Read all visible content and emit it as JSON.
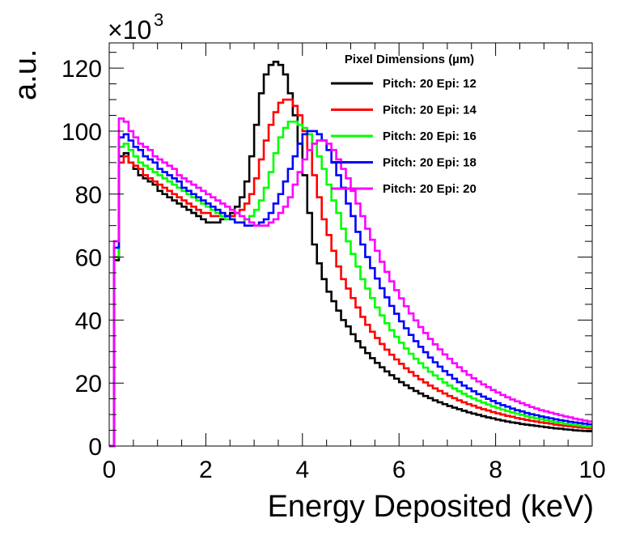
{
  "chart_data": {
    "type": "line",
    "style": "step-histogram",
    "xlabel": "Energy Deposited (keV)",
    "ylabel": "a.u.",
    "y_multiplier_label": "×10",
    "y_multiplier_exponent": "3",
    "xlim": [
      0,
      10
    ],
    "ylim": [
      0,
      128
    ],
    "x_ticks": [
      0,
      2,
      4,
      6,
      8,
      10
    ],
    "y_ticks": [
      0,
      20,
      40,
      60,
      80,
      100,
      120
    ],
    "x_minor_step": 0.5,
    "y_minor_step": 5,
    "bin_width": 0.1,
    "legend_title": "Pixel Dimensions (µm)",
    "legend_position": "top-right",
    "grid": false,
    "series": [
      {
        "name": "Pitch: 20 Epi: 12",
        "color": "#000000",
        "values": [
          0,
          59,
          92,
          93,
          90,
          88,
          86,
          85,
          84,
          83,
          81,
          80,
          79,
          78,
          77,
          76,
          75,
          74,
          73,
          72,
          71,
          71,
          71,
          72,
          73,
          74,
          76,
          79,
          84,
          92,
          102,
          112,
          118,
          121,
          122,
          121,
          118,
          112,
          105,
          96,
          86,
          74,
          64,
          58,
          53,
          49,
          46,
          43,
          40,
          38,
          35.5,
          33.3,
          31.3,
          29.5,
          27.9,
          26.4,
          25.0,
          23.7,
          22.5,
          21.4,
          20.3,
          19.3,
          18.4,
          17.5,
          16.7,
          15.9,
          15.2,
          14.5,
          13.9,
          13.3,
          12.7,
          12.2,
          11.7,
          11.2,
          10.7,
          10.3,
          9.9,
          9.5,
          9.1,
          8.8,
          8.4,
          8.1,
          7.8,
          7.5,
          7.3,
          7.0,
          6.8,
          6.6,
          6.4,
          6.2,
          6.0,
          5.8,
          5.6,
          5.5,
          5.3,
          5.2,
          5.0,
          4.9,
          4.8,
          4.7
        ]
      },
      {
        "name": "Pitch: 20 Epi: 14",
        "color": "#ff0000",
        "values": [
          0,
          60,
          90,
          92,
          90,
          89,
          88,
          86,
          85,
          84,
          83,
          82,
          81,
          80,
          79,
          78,
          77,
          76,
          75,
          74,
          74,
          73,
          73,
          73,
          73,
          73,
          74,
          75,
          77,
          80,
          85,
          91,
          97,
          102,
          106,
          109,
          110,
          110,
          108,
          105,
          100,
          94,
          86,
          79,
          72,
          67,
          62,
          57,
          53,
          50,
          47,
          44,
          41,
          38.5,
          36.3,
          34.3,
          32.4,
          30.6,
          29.0,
          27.5,
          26.1,
          24.7,
          23.5,
          22.3,
          21.2,
          20.2,
          19.2,
          18.3,
          17.5,
          16.7,
          15.9,
          15.2,
          14.5,
          13.9,
          13.3,
          12.8,
          12.2,
          11.7,
          11.3,
          10.8,
          10.4,
          10.0,
          9.6,
          9.3,
          8.9,
          8.6,
          8.3,
          8.0,
          7.8,
          7.5,
          7.3,
          7.1,
          6.8,
          6.6,
          6.4,
          6.3,
          6.1,
          5.9,
          5.8,
          5.6
        ]
      },
      {
        "name": "Pitch: 20 Epi: 16",
        "color": "#00ff00",
        "values": [
          0,
          60,
          95,
          96,
          94,
          92,
          90,
          89,
          88,
          87,
          86,
          85,
          84,
          83,
          82,
          81,
          80,
          79,
          78,
          77,
          76,
          75,
          74,
          73,
          72,
          72,
          71,
          71,
          72,
          73,
          75,
          78,
          82,
          87,
          93,
          98,
          101,
          103,
          103,
          102,
          101,
          99,
          96,
          92,
          88,
          83,
          78,
          74,
          69,
          65,
          61,
          57,
          53,
          50,
          47,
          44,
          41.5,
          39,
          36.8,
          34.7,
          32.8,
          31.0,
          29.3,
          27.7,
          26.3,
          24.9,
          23.6,
          22.4,
          21.3,
          20.2,
          19.2,
          18.3,
          17.4,
          16.6,
          15.8,
          15.1,
          14.4,
          13.8,
          13.2,
          12.6,
          12.1,
          11.6,
          11.1,
          10.7,
          10.3,
          9.9,
          9.5,
          9.1,
          8.8,
          8.5,
          8.2,
          7.9,
          7.6,
          7.4,
          7.1,
          6.9,
          6.7,
          6.5,
          6.3,
          6.1
        ]
      },
      {
        "name": "Pitch: 20 Epi: 18",
        "color": "#0000ff",
        "values": [
          0,
          63,
          98,
          99,
          97,
          95,
          94,
          92,
          91,
          90,
          88,
          87,
          86,
          85,
          84,
          82,
          81,
          80,
          79,
          78,
          77,
          76,
          75,
          74,
          73,
          72,
          71,
          71,
          70,
          70,
          70,
          71,
          72,
          74,
          77,
          80,
          84,
          88,
          92,
          96,
          99,
          100,
          100,
          99,
          97,
          94,
          90,
          86,
          82,
          77,
          73,
          68,
          64,
          60,
          56.5,
          53.2,
          50.1,
          47.2,
          44.5,
          42,
          39.6,
          37.4,
          35.3,
          33.3,
          31.5,
          29.8,
          28.1,
          26.6,
          25.2,
          23.8,
          22.6,
          21.4,
          20.3,
          19.2,
          18.3,
          17.4,
          16.5,
          15.7,
          15.0,
          14.3,
          13.6,
          13.0,
          12.5,
          11.9,
          11.4,
          11.0,
          10.5,
          10.1,
          9.8,
          9.4,
          9.1,
          8.8,
          8.5,
          8.2,
          8.0,
          7.7,
          7.5,
          7.3,
          7.1,
          6.9
        ]
      },
      {
        "name": "Pitch: 20 Epi: 20",
        "color": "#ff00ff",
        "values": [
          0,
          65,
          104,
          103,
          100,
          98,
          96,
          95,
          94,
          92,
          91,
          90,
          89,
          88,
          86,
          85,
          84,
          83,
          82,
          81,
          80,
          79,
          78,
          77,
          76,
          75,
          74,
          73,
          72,
          71,
          70,
          70,
          70,
          71,
          72,
          74,
          76,
          79,
          83,
          87,
          91,
          94,
          96,
          97,
          97,
          96,
          94,
          91,
          88,
          85,
          81,
          77,
          73,
          69,
          65.5,
          62,
          58.5,
          55.3,
          52.3,
          49.5,
          46.9,
          44.4,
          42.1,
          39.9,
          37.8,
          35.9,
          34.0,
          32.3,
          30.7,
          29.1,
          27.7,
          26.3,
          25.0,
          23.8,
          22.6,
          21.5,
          20.5,
          19.6,
          18.7,
          17.8,
          17.0,
          16.2,
          15.5,
          14.8,
          14.2,
          13.6,
          13.0,
          12.4,
          11.9,
          11.4,
          11.0,
          10.6,
          10.2,
          9.8,
          9.4,
          9.1,
          8.7,
          8.4,
          8.1,
          7.8
        ]
      }
    ]
  }
}
